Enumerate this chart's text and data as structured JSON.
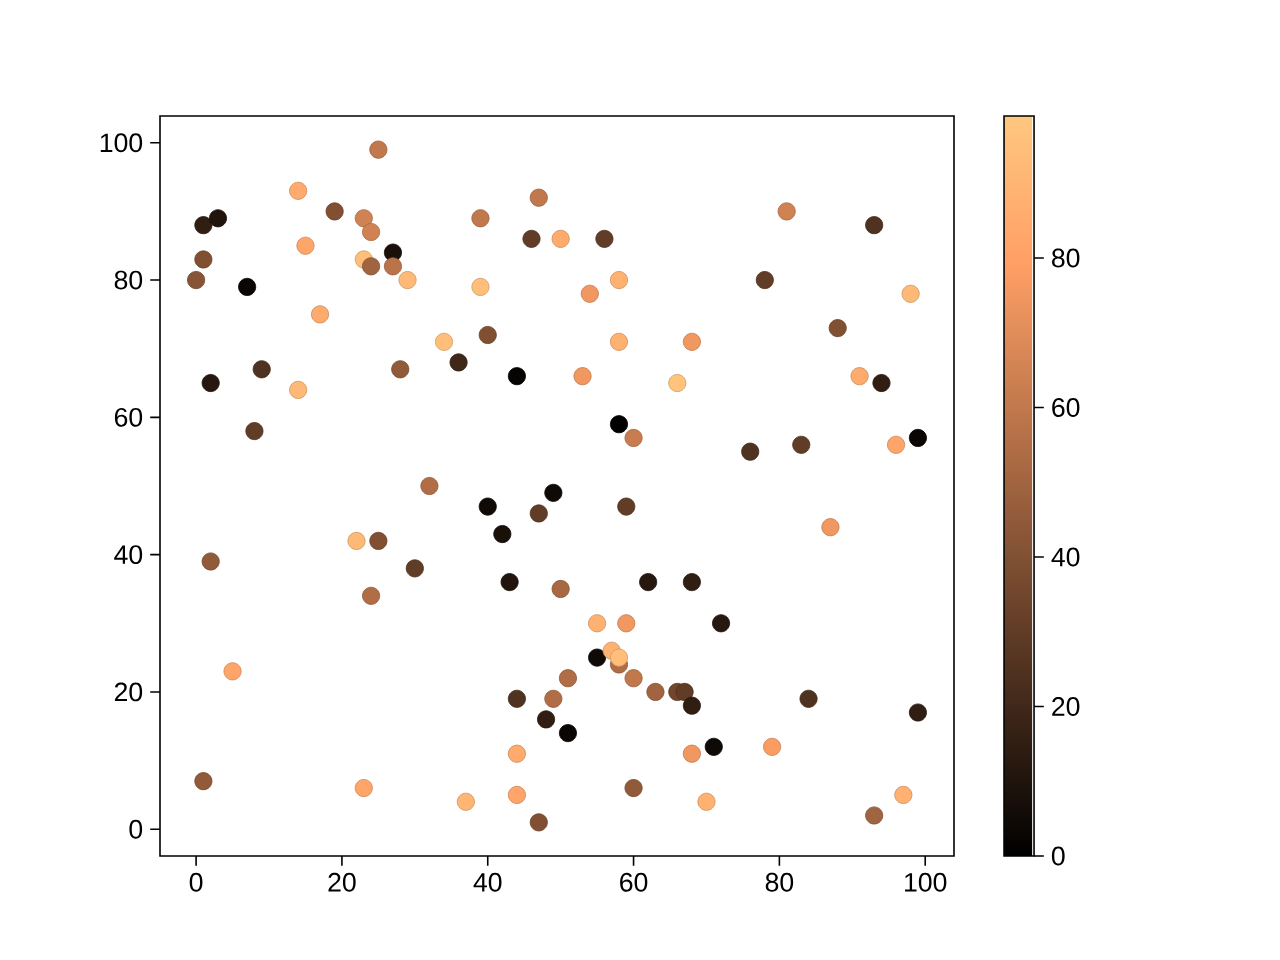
{
  "chart_data": {
    "type": "scatter",
    "x": [
      25,
      14,
      19,
      23,
      24,
      1,
      3,
      15,
      27,
      23,
      24,
      27,
      29,
      1,
      0,
      7,
      39,
      47,
      46,
      39,
      17,
      34,
      40,
      36,
      44,
      28,
      9,
      2,
      14,
      8,
      32,
      50,
      56,
      81,
      93,
      58,
      54,
      78,
      98,
      58,
      68,
      88,
      53,
      66,
      91,
      94,
      58,
      60,
      76,
      83,
      96,
      99,
      49,
      40,
      47,
      42,
      22,
      25,
      2,
      30,
      24,
      43,
      50,
      5,
      44,
      49,
      48,
      44,
      1,
      23,
      37,
      44,
      47,
      59,
      87,
      62,
      68,
      72,
      55,
      59,
      55,
      57,
      58,
      58,
      51,
      60,
      63,
      66,
      67,
      68,
      51,
      84,
      99,
      71,
      68,
      79,
      60,
      70,
      97,
      93
    ],
    "values": [
      99,
      93,
      90,
      89,
      87,
      88,
      89,
      85,
      84,
      83,
      82,
      82,
      80,
      83,
      80,
      79,
      89,
      92,
      86,
      79,
      75,
      71,
      72,
      68,
      66,
      67,
      67,
      65,
      64,
      58,
      50,
      86,
      86,
      90,
      88,
      80,
      78,
      80,
      78,
      71,
      71,
      73,
      66,
      65,
      66,
      65,
      59,
      57,
      55,
      56,
      56,
      57,
      49,
      47,
      46,
      43,
      42,
      42,
      39,
      38,
      34,
      36,
      35,
      23,
      19,
      19,
      16,
      11,
      7,
      6,
      4,
      5,
      1,
      47,
      44,
      36,
      36,
      30,
      30,
      30,
      25,
      26,
      24,
      25,
      22,
      22,
      20,
      20,
      20,
      18,
      14,
      19,
      17,
      12,
      11,
      12,
      6,
      4,
      5,
      2
    ],
    "cvalues": [
      60,
      85,
      40,
      65,
      65,
      15,
      10,
      82,
      8,
      95,
      50,
      58,
      92,
      40,
      42,
      3,
      60,
      60,
      30,
      95,
      85,
      95,
      40,
      20,
      2,
      45,
      25,
      12,
      92,
      30,
      55,
      85,
      30,
      65,
      25,
      88,
      75,
      30,
      92,
      88,
      75,
      40,
      75,
      97,
      85,
      15,
      0,
      62,
      25,
      30,
      82,
      3,
      5,
      5,
      30,
      8,
      92,
      40,
      45,
      30,
      55,
      10,
      52,
      82,
      25,
      55,
      15,
      85,
      45,
      82,
      90,
      82,
      40,
      30,
      75,
      12,
      15,
      12,
      88,
      75,
      5,
      88,
      55,
      95,
      55,
      60,
      50,
      35,
      30,
      15,
      3,
      25,
      15,
      5,
      75,
      78,
      45,
      88,
      88,
      50
    ],
    "xlim": [
      -4.95,
      103.95
    ],
    "ylim": [
      -3.9,
      103.9
    ],
    "xticks": [
      0,
      20,
      40,
      60,
      80,
      100
    ],
    "yticks": [
      0,
      20,
      40,
      60,
      80,
      100
    ],
    "clim": [
      0,
      99
    ],
    "cticks": [
      0,
      20,
      40,
      60,
      80
    ],
    "marker": "circle"
  }
}
